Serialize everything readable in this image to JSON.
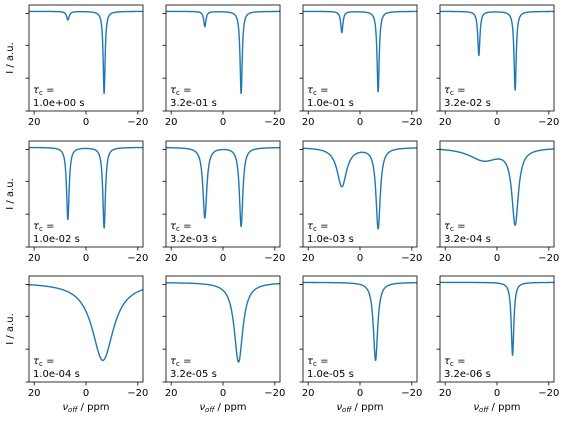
{
  "figure": {
    "ylabel": "I / a.u.",
    "xlabel_main": "ν",
    "xlabel_sub": "off",
    "xlabel_unit": " / ppm",
    "line_color": "#1f77b4",
    "xlim": [
      22,
      -22
    ]
  },
  "chart_data": [
    {
      "type": "line",
      "tau_label": "τ",
      "tau_sub": "c",
      "tau_eq": " =",
      "tau_value": "1.0e+00 s",
      "xticks": [
        "20",
        "0",
        "−20"
      ],
      "peaks": [
        {
          "center": 7.0,
          "width": 0.6,
          "depth": 0.1
        },
        {
          "center": -7.0,
          "width": 0.45,
          "depth": 0.97
        }
      ]
    },
    {
      "type": "line",
      "tau_label": "τ",
      "tau_sub": "c",
      "tau_eq": " =",
      "tau_value": "3.2e-01 s",
      "xticks": [
        "20",
        "0",
        "−20"
      ],
      "peaks": [
        {
          "center": 7.0,
          "width": 0.5,
          "depth": 0.18
        },
        {
          "center": -7.0,
          "width": 0.5,
          "depth": 0.97
        }
      ]
    },
    {
      "type": "line",
      "tau_label": "τ",
      "tau_sub": "c",
      "tau_eq": " =",
      "tau_value": "1.0e-01 s",
      "xticks": [
        "20",
        "0",
        "−20"
      ],
      "peaks": [
        {
          "center": 7.0,
          "width": 0.5,
          "depth": 0.25
        },
        {
          "center": -7.0,
          "width": 0.5,
          "depth": 0.95
        }
      ]
    },
    {
      "type": "line",
      "tau_label": "τ",
      "tau_sub": "c",
      "tau_eq": " =",
      "tau_value": "3.2e-02 s",
      "xticks": [
        "20",
        "0",
        "−20"
      ],
      "peaks": [
        {
          "center": 7.0,
          "width": 0.5,
          "depth": 0.52
        },
        {
          "center": -7.0,
          "width": 0.5,
          "depth": 0.93
        }
      ]
    },
    {
      "type": "line",
      "tau_label": "τ",
      "tau_sub": "c",
      "tau_eq": " =",
      "tau_value": "1.0e-02 s",
      "xticks": [
        "20",
        "0",
        "−20"
      ],
      "peaks": [
        {
          "center": 7.0,
          "width": 0.6,
          "depth": 0.85
        },
        {
          "center": -7.0,
          "width": 0.6,
          "depth": 0.95
        }
      ]
    },
    {
      "type": "line",
      "tau_label": "τ",
      "tau_sub": "c",
      "tau_eq": " =",
      "tau_value": "3.2e-03 s",
      "xticks": [
        "20",
        "0",
        "−20"
      ],
      "peaks": [
        {
          "center": 7.0,
          "width": 0.9,
          "depth": 0.83
        },
        {
          "center": -7.0,
          "width": 0.8,
          "depth": 0.93
        }
      ]
    },
    {
      "type": "line",
      "tau_label": "τ",
      "tau_sub": "c",
      "tau_eq": " =",
      "tau_value": "1.0e-03 s",
      "xticks": [
        "20",
        "0",
        "−20"
      ],
      "peaks": [
        {
          "center": 7.0,
          "width": 2.2,
          "depth": 0.46
        },
        {
          "center": -7.0,
          "width": 1.0,
          "depth": 0.95
        }
      ]
    },
    {
      "type": "line",
      "tau_label": "τ",
      "tau_sub": "c",
      "tau_eq": " =",
      "tau_value": "3.2e-04 s",
      "xticks": [
        "20",
        "0",
        "−20"
      ],
      "peaks": [
        {
          "center": 5.0,
          "width": 7.0,
          "depth": 0.15
        },
        {
          "center": -7.0,
          "width": 1.5,
          "depth": 0.88
        }
      ]
    },
    {
      "type": "line",
      "tau_label": "τ",
      "tau_sub": "c",
      "tau_eq": " =",
      "tau_value": "1.0e-04 s",
      "xticks": [
        "20",
        "0",
        "−20"
      ],
      "peaks": [
        {
          "center": -6.5,
          "width": 5.0,
          "depth": 0.92
        }
      ]
    },
    {
      "type": "line",
      "tau_label": "τ",
      "tau_sub": "c",
      "tau_eq": " =",
      "tau_value": "3.2e-05 s",
      "xticks": [
        "20",
        "0",
        "−20"
      ],
      "peaks": [
        {
          "center": -6.0,
          "width": 2.0,
          "depth": 0.94
        }
      ]
    },
    {
      "type": "line",
      "tau_label": "τ",
      "tau_sub": "c",
      "tau_eq": " =",
      "tau_value": "1.0e-05 s",
      "xticks": [
        "20",
        "0",
        "−20"
      ],
      "peaks": [
        {
          "center": -6.0,
          "width": 1.0,
          "depth": 0.92
        }
      ]
    },
    {
      "type": "line",
      "tau_label": "τ",
      "tau_sub": "c",
      "tau_eq": " =",
      "tau_value": "3.2e-06 s",
      "xticks": [
        "20",
        "0",
        "−20"
      ],
      "peaks": [
        {
          "center": -6.0,
          "width": 0.6,
          "depth": 0.86
        }
      ]
    }
  ]
}
